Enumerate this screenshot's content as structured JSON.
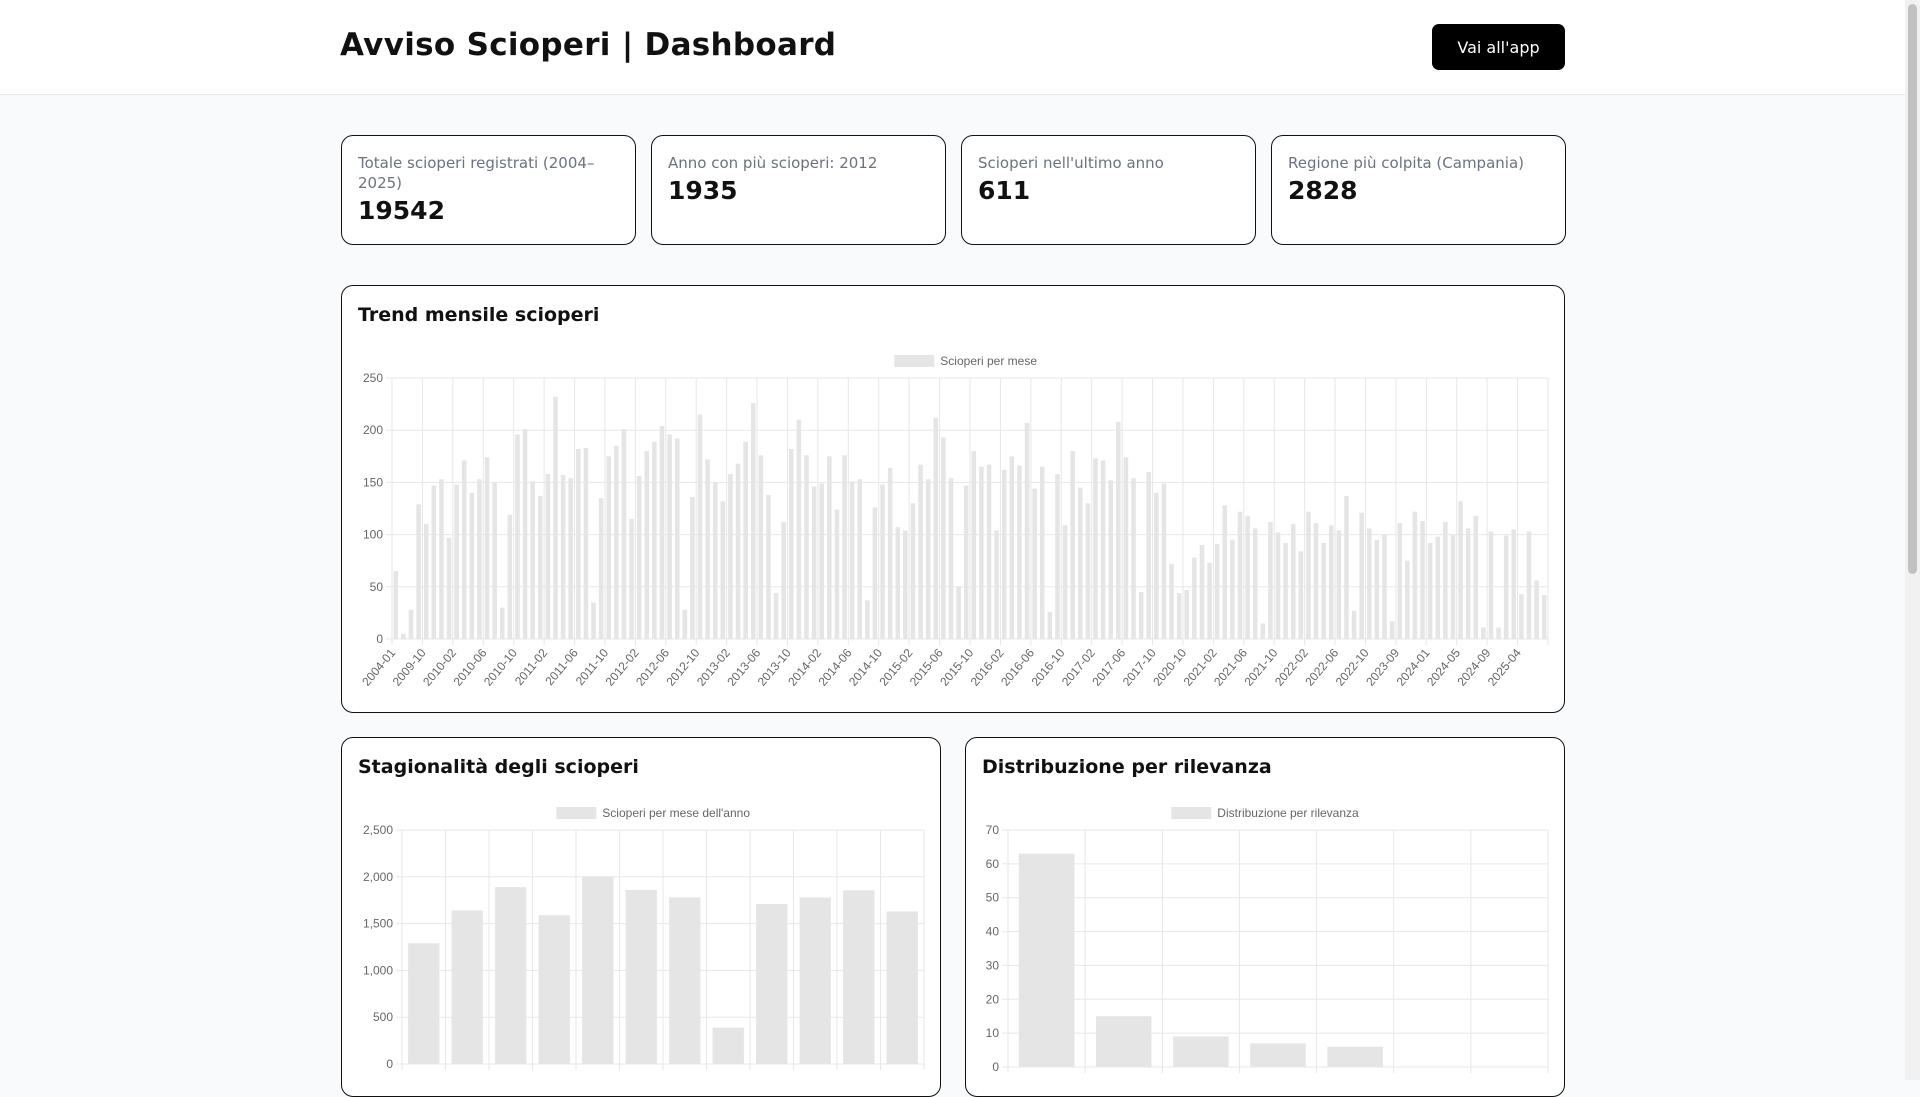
{
  "header": {
    "title": "Avviso Scioperi | Dashboard",
    "app_button": "Vai all'app"
  },
  "kpis": [
    {
      "label": "Totale scioperi registrati (2004–2025)",
      "value": "19542"
    },
    {
      "label": "Anno con più scioperi: 2012",
      "value": "1935"
    },
    {
      "label": "Scioperi nell'ultimo anno",
      "value": "611"
    },
    {
      "label": "Regione più colpita (Campania)",
      "value": "2828"
    }
  ],
  "colors": {
    "bar": "#e5e5e5",
    "grid": "#e5e7eb",
    "text": "#666666"
  },
  "charts": {
    "trend": {
      "title": "Trend mensile scioperi",
      "chart_data": {
        "type": "bar",
        "legend": "Scioperi per mese",
        "ylim": [
          0,
          250
        ],
        "yticks": [
          0,
          50,
          100,
          150,
          200,
          250
        ],
        "tick_labels": [
          "2004-01",
          "2009-10",
          "2010-02",
          "2010-06",
          "2010-10",
          "2011-02",
          "2011-06",
          "2011-10",
          "2012-02",
          "2012-06",
          "2012-10",
          "2013-02",
          "2013-06",
          "2013-10",
          "2014-02",
          "2014-06",
          "2014-10",
          "2015-02",
          "2015-06",
          "2015-10",
          "2016-02",
          "2016-06",
          "2016-10",
          "2017-02",
          "2017-06",
          "2017-10",
          "2020-10",
          "2021-02",
          "2021-06",
          "2021-10",
          "2022-02",
          "2022-06",
          "2022-10",
          "2023-09",
          "2024-01",
          "2024-05",
          "2024-09",
          "2025-04"
        ],
        "values": [
          65,
          5,
          28,
          129,
          110,
          147,
          153,
          97,
          148,
          171,
          140,
          153,
          174,
          150,
          30,
          119,
          196,
          201,
          151,
          137,
          158,
          232,
          157,
          154,
          182,
          183,
          35,
          135,
          175,
          185,
          201,
          115,
          156,
          180,
          189,
          204,
          196,
          192,
          28,
          136,
          215,
          172,
          150,
          132,
          158,
          168,
          189,
          226,
          176,
          138,
          44,
          112,
          182,
          210,
          176,
          146,
          149,
          175,
          124,
          176,
          151,
          153,
          37,
          126,
          148,
          164,
          107,
          104,
          130,
          167,
          153,
          212,
          193,
          154,
          50,
          147,
          180,
          165,
          167,
          104,
          162,
          175,
          166,
          207,
          144,
          165,
          26,
          158,
          109,
          180,
          145,
          130,
          173,
          171,
          152,
          208,
          174,
          154,
          45,
          160,
          140,
          149,
          72,
          44,
          47,
          78,
          90,
          73,
          91,
          128,
          95,
          122,
          118,
          106,
          15,
          112,
          102,
          92,
          110,
          84,
          122,
          111,
          92,
          109,
          104,
          137,
          27,
          121,
          106,
          95,
          100,
          17,
          111,
          75,
          122,
          113,
          92,
          98,
          112,
          100,
          132,
          106,
          118,
          11,
          103,
          11,
          99,
          105,
          43,
          103,
          56,
          42
        ]
      }
    },
    "seasonality": {
      "title": "Stagionalità degli scioperi",
      "chart_data": {
        "type": "bar",
        "legend": "Scioperi per mese dell'anno",
        "ylim": [
          0,
          2500
        ],
        "yticks": [
          0,
          500,
          1000,
          1500,
          2000,
          2500
        ],
        "ytick_labels": [
          "0",
          "500",
          "1,000",
          "1,500",
          "2,000",
          "2,500"
        ],
        "values": [
          1290,
          1640,
          1890,
          1590,
          2000,
          1860,
          1780,
          390,
          1710,
          1780,
          1855,
          1630
        ]
      }
    },
    "relevance": {
      "title": "Distribuzione per rilevanza",
      "chart_data": {
        "type": "bar",
        "legend": "Distribuzione per rilevanza",
        "ylim": [
          0,
          70
        ],
        "yticks": [
          0,
          10,
          20,
          30,
          40,
          50,
          60,
          70
        ],
        "values": [
          63,
          15,
          9,
          7,
          6,
          0,
          0
        ]
      }
    }
  }
}
